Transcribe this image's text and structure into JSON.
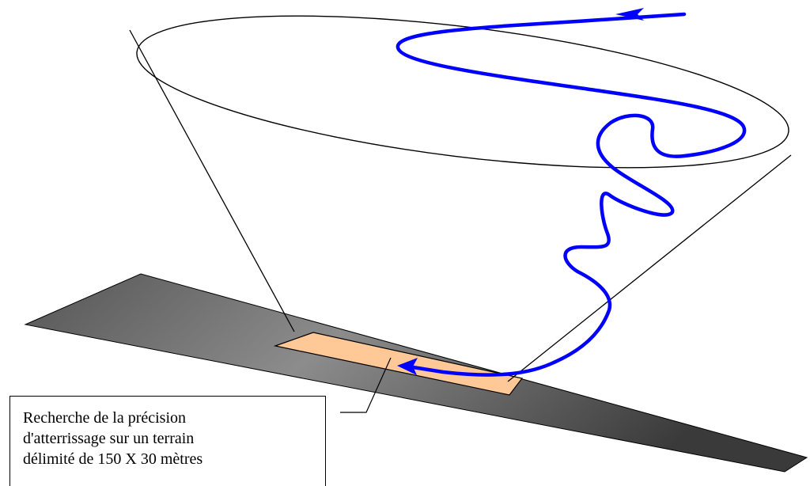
{
  "caption": {
    "line1": "Recherche de la précision",
    "line2": "d'atterrissage sur un terrain",
    "line3": "délimité de 150 X 30 mètres"
  },
  "colors": {
    "runway_dark": "#4a4a4a",
    "runway_light": "#8a8a8a",
    "landing_zone": "#ffc896",
    "flight_path": "#0000ff",
    "outline": "#000000"
  },
  "icons": {
    "start_arrow": "arrow-left-icon",
    "end_arrow": "arrow-left-icon"
  }
}
